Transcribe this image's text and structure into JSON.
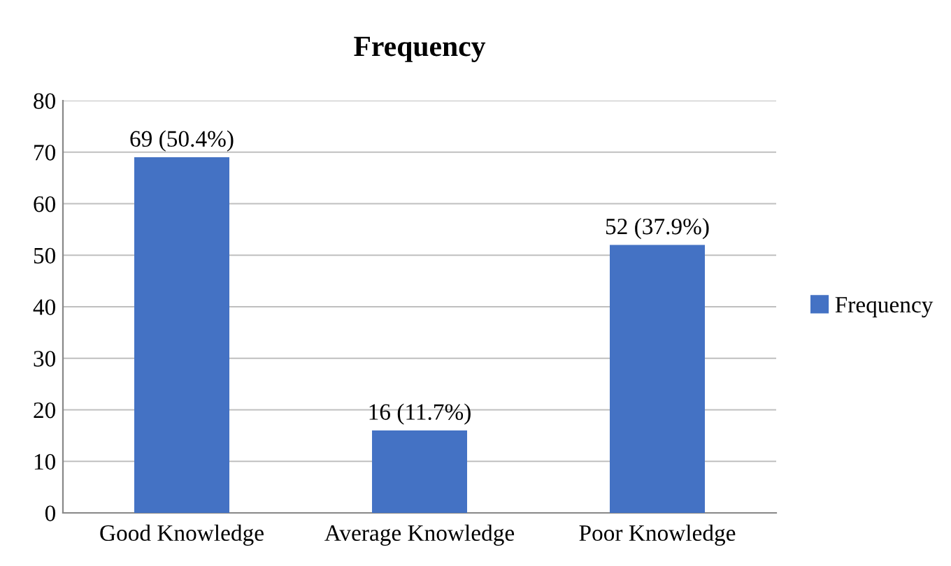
{
  "chart_data": {
    "type": "bar",
    "title": "Frequency",
    "categories": [
      "Good Knowledge",
      "Average Knowledge",
      "Poor Knowledge"
    ],
    "series": [
      {
        "name": "Frequency",
        "color": "#4472c4",
        "values": [
          69,
          16,
          52
        ],
        "value_labels": [
          "69 (50.4%)",
          "16 (11.7%)",
          "52 (37.9%)"
        ]
      }
    ],
    "ylim": [
      0,
      80
    ],
    "yticks": [
      0,
      10,
      20,
      30,
      40,
      50,
      60,
      70,
      80
    ],
    "grid": "y",
    "legend": "right"
  }
}
